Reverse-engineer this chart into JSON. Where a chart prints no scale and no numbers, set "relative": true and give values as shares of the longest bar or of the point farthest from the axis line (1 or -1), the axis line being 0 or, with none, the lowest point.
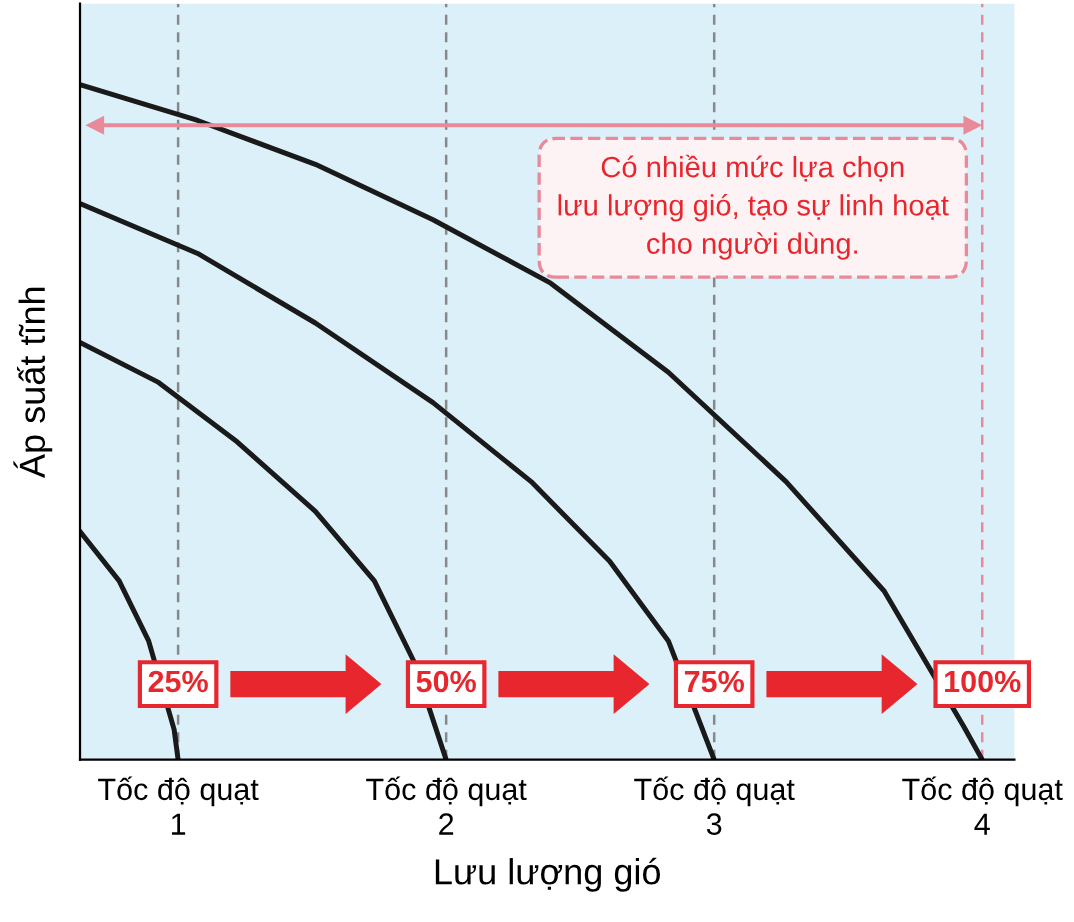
{
  "chart_data": {
    "type": "line",
    "relative": true,
    "xlabel": "Lưu lượng gió",
    "ylabel": "Áp suất tĩnh",
    "xlim": [
      0.634,
      4.12
    ],
    "xticks": [
      1,
      2,
      3,
      4
    ],
    "grid": false,
    "marker": "none",
    "line_style": "solid",
    "series": [
      {
        "color": "#1a1a1a",
        "x": [
          0.634,
          0.78,
          0.89,
          0.985,
          1
        ],
        "values": [
          0.338,
          0.265,
          0.176,
          0.045,
          0
        ]
      },
      {
        "color": "#1a1a1a",
        "x": [
          0.634,
          0.927,
          1.22,
          1.512,
          1.732,
          1.878,
          2
        ],
        "values": [
          0.618,
          0.559,
          0.471,
          0.368,
          0.265,
          0.147,
          0
        ]
      },
      {
        "color": "#1a1a1a",
        "x": [
          0.634,
          1.073,
          1.512,
          1.951,
          2.317,
          2.61,
          2.829,
          3
        ],
        "values": [
          0.824,
          0.75,
          0.647,
          0.529,
          0.412,
          0.294,
          0.176,
          0
        ]
      },
      {
        "color": "#1a1a1a",
        "x": [
          0.634,
          1.073,
          1.512,
          1.951,
          2.39,
          2.829,
          3.268,
          3.634,
          3.93,
          4
        ],
        "values": [
          1,
          0.947,
          0.882,
          0.8,
          0.706,
          0.574,
          0.412,
          0.25,
          0.05,
          0
        ]
      }
    ],
    "ref_lines": [
      {
        "axis": "x",
        "value": 1,
        "color": "#888888",
        "line_style": "dashed"
      },
      {
        "axis": "x",
        "value": 2,
        "color": "#888888",
        "line_style": "dashed"
      },
      {
        "axis": "x",
        "value": 3,
        "color": "#888888",
        "line_style": "dashed"
      },
      {
        "axis": "x",
        "value": 4,
        "color": "#e88a9a",
        "line_style": "dashed"
      }
    ],
    "annotations": [
      "Có nhiều mức lựa chọn\nlưu lượng gió, tạo sự linh hoạt\ncho người dùng.",
      "Tốc độ quạt",
      "Tốc độ quạt",
      "Tốc độ quạt",
      "Tốc độ quạt",
      {
        "text": "25%",
        "x": 1,
        "y": 0.112
      },
      {
        "text": "50%",
        "x": 2,
        "y": 0.112
      },
      {
        "text": "75%",
        "x": 3,
        "y": 0.112
      },
      {
        "text": "100%",
        "x": 4,
        "y": 0.112
      }
    ]
  }
}
